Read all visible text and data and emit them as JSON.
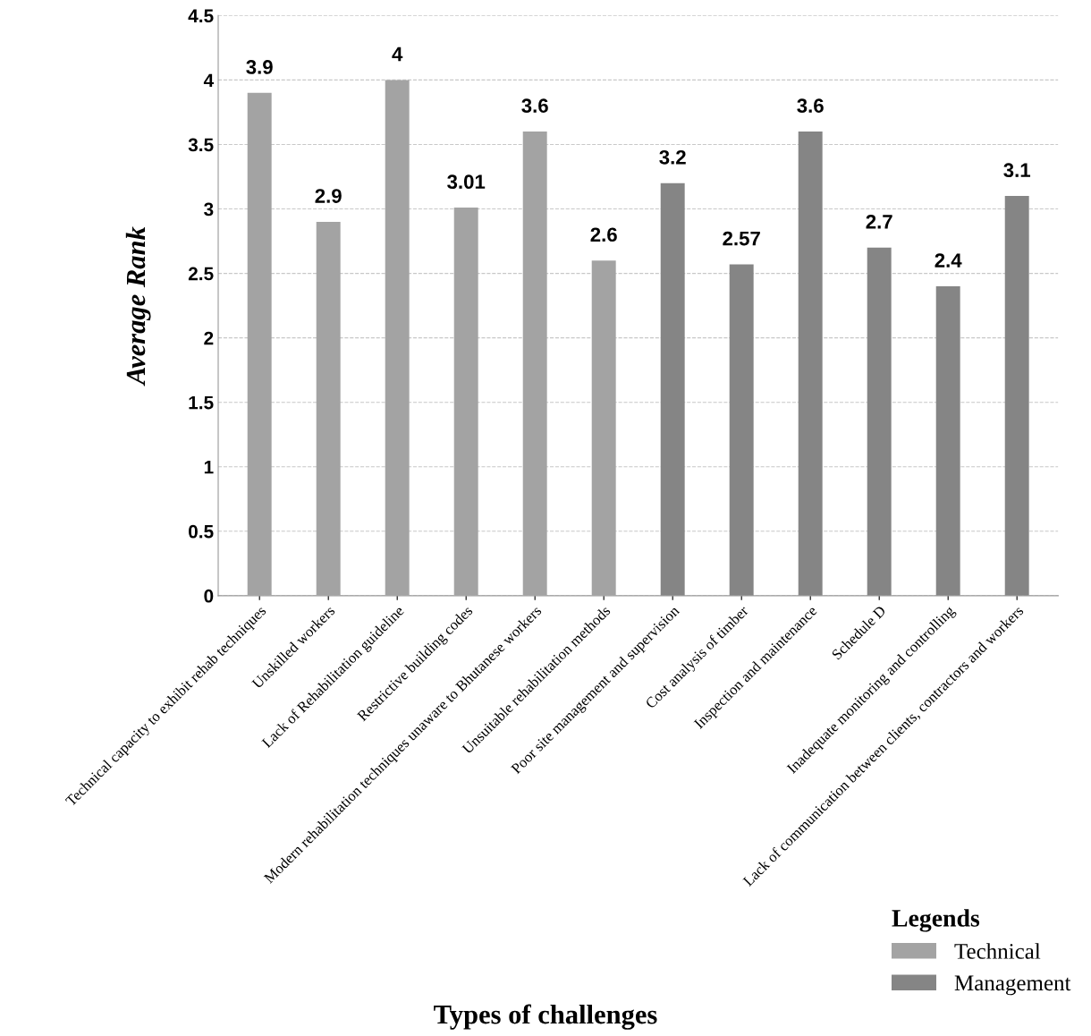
{
  "chart_data": {
    "type": "bar",
    "xlabel": "Types of challenges",
    "ylabel": "Average Rank",
    "legend_title": "Legends",
    "categories": [
      "Technical capacity to exhibit rehab techniques",
      "Unskilled workers",
      "Lack of Rehabilitation guideline",
      "Restrictive building codes",
      "Modern rehabilitation techniques unaware to Bhutanese workers",
      "Unsuitable rehabilitation methods",
      "Poor site management and supervision",
      "Cost analysis of timber",
      "Inspection and maintenance",
      "Schedule D",
      "Inadequate monitoring and controlling",
      "Lack of communication between clients, contractors and workers"
    ],
    "series": [
      {
        "name": "Technical",
        "color": "#a3a3a3",
        "values": [
          3.9,
          2.9,
          4,
          3.01,
          3.6,
          2.6,
          null,
          null,
          null,
          null,
          null,
          null
        ]
      },
      {
        "name": "Management",
        "color": "#858585",
        "values": [
          null,
          null,
          null,
          null,
          null,
          null,
          3.2,
          2.57,
          3.6,
          2.7,
          2.4,
          3.1
        ]
      }
    ],
    "ylim": [
      0,
      4.5
    ],
    "yticks": [
      0,
      0.5,
      1,
      1.5,
      2,
      2.5,
      3,
      3.5,
      4,
      4.5
    ],
    "grid": "y",
    "legend": "bottom right",
    "data_labels": true
  }
}
